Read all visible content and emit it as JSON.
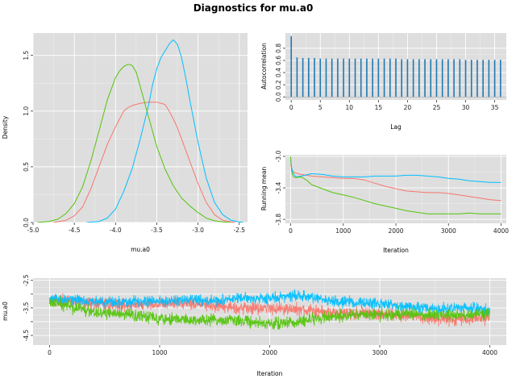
{
  "title": "Diagnostics for mu.a0",
  "colors": {
    "chain1": "#f8766d",
    "chain2": "#00bfff",
    "chain3": "#53c40b",
    "acf": "#1f78b4",
    "panel": "#dedede"
  },
  "chart_data": [
    {
      "id": "density",
      "type": "line",
      "xlabel": "mu.a0",
      "ylabel": "Density",
      "xlim": [
        -5.0,
        -2.4
      ],
      "ylim": [
        0,
        1.7
      ],
      "xticks": [
        -5.0,
        -4.5,
        -4.0,
        -3.5,
        -3.0,
        -2.5
      ],
      "xtick_labels": [
        "-5.0",
        "-4.5",
        "-4.0",
        "-3.5",
        "-3.0",
        "-2.5"
      ],
      "yticks": [
        0,
        0.5,
        1.0,
        1.5
      ],
      "ytick_labels": [
        "0.0",
        "0.5",
        "1.0",
        "1.5"
      ],
      "grid": true,
      "series": [
        {
          "color": "#f8766d",
          "x": [
            -4.75,
            -4.6,
            -4.5,
            -4.4,
            -4.3,
            -4.2,
            -4.1,
            -4.0,
            -3.9,
            -3.85,
            -3.8,
            -3.7,
            -3.6,
            -3.5,
            -3.45,
            -3.4,
            -3.35,
            -3.3,
            -3.25,
            -3.2,
            -3.1,
            -3.0,
            -2.9,
            -2.8,
            -2.7,
            -2.6,
            -2.55
          ],
          "y": [
            0,
            0.02,
            0.06,
            0.14,
            0.3,
            0.5,
            0.7,
            0.86,
            1.0,
            1.03,
            1.05,
            1.07,
            1.08,
            1.08,
            1.07,
            1.06,
            1.0,
            0.93,
            0.85,
            0.75,
            0.55,
            0.35,
            0.18,
            0.07,
            0.02,
            0.005,
            0
          ]
        },
        {
          "color": "#00bfff",
          "x": [
            -4.35,
            -4.2,
            -4.1,
            -4.0,
            -3.9,
            -3.8,
            -3.7,
            -3.6,
            -3.55,
            -3.5,
            -3.45,
            -3.4,
            -3.35,
            -3.3,
            -3.25,
            -3.2,
            -3.15,
            -3.1,
            -3.0,
            -2.9,
            -2.8,
            -2.7,
            -2.6,
            -2.5,
            -2.45
          ],
          "y": [
            0,
            0.01,
            0.04,
            0.12,
            0.28,
            0.48,
            0.75,
            1.05,
            1.24,
            1.38,
            1.48,
            1.54,
            1.6,
            1.64,
            1.6,
            1.48,
            1.3,
            1.1,
            0.72,
            0.4,
            0.18,
            0.07,
            0.02,
            0.005,
            0
          ]
        },
        {
          "color": "#53c40b",
          "x": [
            -4.95,
            -4.8,
            -4.7,
            -4.6,
            -4.5,
            -4.4,
            -4.3,
            -4.2,
            -4.1,
            -4.0,
            -3.95,
            -3.9,
            -3.85,
            -3.8,
            -3.75,
            -3.7,
            -3.6,
            -3.5,
            -3.4,
            -3.3,
            -3.2,
            -3.1,
            -3.0,
            -2.9,
            -2.8,
            -2.7,
            -2.6
          ],
          "y": [
            0,
            0.01,
            0.03,
            0.08,
            0.17,
            0.32,
            0.55,
            0.82,
            1.1,
            1.3,
            1.36,
            1.4,
            1.42,
            1.41,
            1.35,
            1.22,
            0.95,
            0.68,
            0.48,
            0.33,
            0.22,
            0.15,
            0.09,
            0.04,
            0.015,
            0.005,
            0
          ]
        }
      ]
    },
    {
      "id": "autocorrelation",
      "type": "bar",
      "xlabel": "Lag",
      "ylabel": "Autocorrelation",
      "xlim": [
        -1,
        37
      ],
      "ylim": [
        -0.05,
        1.05
      ],
      "xticks": [
        0,
        5,
        10,
        15,
        20,
        25,
        30,
        35
      ],
      "xtick_labels": [
        "0",
        "5",
        "10",
        "15",
        "20",
        "25",
        "30",
        "35"
      ],
      "yticks": [
        0,
        0.2,
        0.4,
        0.6,
        0.8
      ],
      "ytick_labels": [
        "0.0",
        "0.2",
        "0.4",
        "0.6",
        "0.8"
      ],
      "grid": true,
      "lags": [
        0,
        1,
        2,
        3,
        4,
        5,
        6,
        7,
        8,
        9,
        10,
        11,
        12,
        13,
        14,
        15,
        16,
        17,
        18,
        19,
        20,
        21,
        22,
        23,
        24,
        25,
        26,
        27,
        28,
        29,
        30,
        31,
        32,
        33,
        34,
        35,
        36
      ],
      "values": [
        1.0,
        0.65,
        0.64,
        0.64,
        0.64,
        0.63,
        0.63,
        0.63,
        0.63,
        0.63,
        0.63,
        0.63,
        0.63,
        0.63,
        0.63,
        0.63,
        0.63,
        0.63,
        0.63,
        0.62,
        0.62,
        0.62,
        0.62,
        0.62,
        0.62,
        0.62,
        0.62,
        0.62,
        0.62,
        0.62,
        0.61,
        0.61,
        0.61,
        0.61,
        0.61,
        0.61,
        0.61
      ]
    },
    {
      "id": "running_mean",
      "type": "line",
      "xlabel": "Iteration",
      "ylabel": "Running mean",
      "xlim": [
        -100,
        4100
      ],
      "ylim": [
        -3.85,
        -2.98
      ],
      "xticks": [
        0,
        1000,
        2000,
        3000,
        4000
      ],
      "xtick_labels": [
        "0",
        "1000",
        "2000",
        "3000",
        "4000"
      ],
      "yticks": [
        -3.0,
        -3.4,
        -3.8
      ],
      "ytick_labels": [
        "-3.0",
        "-3.4",
        "-3.8"
      ],
      "grid": true,
      "series": [
        {
          "color": "#f8766d",
          "x": [
            0,
            20,
            50,
            100,
            200,
            400,
            600,
            800,
            1000,
            1200,
            1400,
            1600,
            1800,
            2000,
            2200,
            2400,
            2600,
            2800,
            3000,
            3200,
            3400,
            3600,
            3800,
            4000
          ],
          "y": [
            -3.1,
            -3.15,
            -3.2,
            -3.21,
            -3.23,
            -3.25,
            -3.26,
            -3.27,
            -3.28,
            -3.28,
            -3.3,
            -3.34,
            -3.38,
            -3.41,
            -3.44,
            -3.45,
            -3.46,
            -3.46,
            -3.47,
            -3.49,
            -3.51,
            -3.53,
            -3.55,
            -3.56
          ]
        },
        {
          "color": "#00bfff",
          "x": [
            0,
            20,
            50,
            100,
            200,
            400,
            600,
            800,
            1000,
            1200,
            1400,
            1600,
            1800,
            2000,
            2200,
            2400,
            2600,
            2800,
            3000,
            3200,
            3400,
            3600,
            3800,
            4000
          ],
          "y": [
            -3.05,
            -3.15,
            -3.22,
            -3.26,
            -3.25,
            -3.22,
            -3.23,
            -3.25,
            -3.26,
            -3.26,
            -3.26,
            -3.25,
            -3.25,
            -3.25,
            -3.24,
            -3.24,
            -3.25,
            -3.26,
            -3.28,
            -3.29,
            -3.31,
            -3.32,
            -3.33,
            -3.33
          ]
        },
        {
          "color": "#53c40b",
          "x": [
            0,
            20,
            50,
            100,
            200,
            300,
            400,
            600,
            800,
            1000,
            1200,
            1400,
            1600,
            1800,
            2000,
            2200,
            2400,
            2600,
            2800,
            3000,
            3200,
            3400,
            3600,
            3800,
            4000
          ],
          "y": [
            -3.0,
            -3.2,
            -3.26,
            -3.27,
            -3.26,
            -3.3,
            -3.36,
            -3.41,
            -3.46,
            -3.49,
            -3.52,
            -3.56,
            -3.6,
            -3.63,
            -3.66,
            -3.69,
            -3.71,
            -3.73,
            -3.73,
            -3.73,
            -3.73,
            -3.72,
            -3.73,
            -3.73,
            -3.73
          ]
        }
      ]
    },
    {
      "id": "trace",
      "type": "line",
      "xlabel": "Iteration",
      "ylabel": "mu.a0",
      "xlim": [
        -150,
        4150
      ],
      "ylim": [
        -4.85,
        -2.42
      ],
      "xticks": [
        0,
        1000,
        2000,
        3000,
        4000
      ],
      "xtick_labels": [
        "0",
        "1000",
        "2000",
        "3000",
        "4000"
      ],
      "yticks": [
        -2.5,
        -3.0,
        -3.5,
        -4.0,
        -4.5
      ],
      "ytick_labels": [
        "-2.5",
        "-3.5",
        "-4.5"
      ],
      "ytick_labels_at": [
        -2.5,
        -3.5,
        -4.5
      ],
      "grid": true,
      "series": [
        {
          "color": "#f8766d",
          "x": [
            0,
            250,
            500,
            750,
            1000,
            1250,
            1500,
            1750,
            2000,
            2250,
            2500,
            2750,
            3000,
            3250,
            3500,
            3750,
            4000
          ],
          "y": [
            -3.2,
            -3.3,
            -3.35,
            -3.4,
            -3.35,
            -3.3,
            -3.45,
            -3.5,
            -3.5,
            -3.55,
            -3.65,
            -3.7,
            -3.7,
            -3.8,
            -3.9,
            -3.9,
            -3.85
          ],
          "noise": 0.22
        },
        {
          "color": "#00bfff",
          "x": [
            0,
            250,
            500,
            750,
            1000,
            1250,
            1500,
            1750,
            2000,
            2250,
            2500,
            2750,
            3000,
            3250,
            3500,
            3750,
            4000
          ],
          "y": [
            -3.2,
            -3.2,
            -3.3,
            -3.25,
            -3.25,
            -3.2,
            -3.25,
            -3.15,
            -3.15,
            -3.05,
            -3.2,
            -3.3,
            -3.35,
            -3.45,
            -3.55,
            -3.5,
            -3.6
          ],
          "noise": 0.2
        },
        {
          "color": "#53c40b",
          "x": [
            0,
            250,
            500,
            750,
            1000,
            1250,
            1500,
            1750,
            2000,
            2250,
            2500,
            2750,
            3000,
            3250,
            3500,
            3750,
            4000
          ],
          "y": [
            -3.3,
            -3.5,
            -3.7,
            -3.75,
            -3.85,
            -3.95,
            -3.95,
            -3.95,
            -4.1,
            -4.0,
            -3.85,
            -3.75,
            -3.75,
            -3.7,
            -3.75,
            -3.75,
            -3.7
          ],
          "noise": 0.22
        }
      ]
    }
  ]
}
